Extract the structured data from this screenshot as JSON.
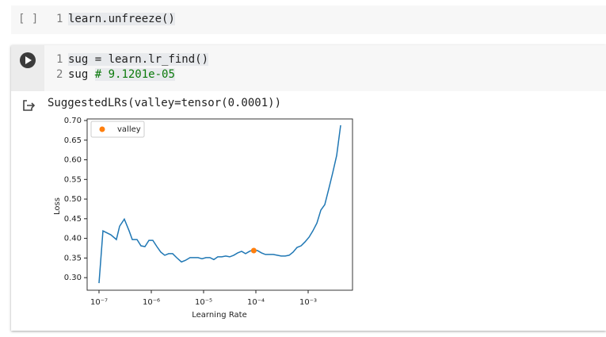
{
  "cells": [
    {
      "prompt": "[ ]",
      "lines": [
        {
          "number": 1,
          "code": "learn.unfreeze()"
        }
      ]
    },
    {
      "lines": [
        {
          "number": 1,
          "code": "sug = learn.lr_find()"
        },
        {
          "number": 2,
          "code": "sug",
          "comment": "# 9.1201e-05"
        }
      ],
      "output": "SuggestedLRs(valley=tensor(0.0001))"
    }
  ],
  "chart_data": {
    "type": "line",
    "xlabel": "Learning Rate",
    "ylabel": "Loss",
    "xscale": "log",
    "xlim": [
      5.93e-08,
      0.00705
    ],
    "ylim": [
      0.268,
      0.704
    ],
    "xticks": [
      {
        "value": 1e-07,
        "label": "10⁻⁷"
      },
      {
        "value": 1e-06,
        "label": "10⁻⁶"
      },
      {
        "value": 1e-05,
        "label": "10⁻⁵"
      },
      {
        "value": 0.0001,
        "label": "10⁻⁴"
      },
      {
        "value": 0.001,
        "label": "10⁻³"
      }
    ],
    "yticks": [
      {
        "value": 0.3,
        "label": "0.30"
      },
      0.35,
      {
        "value": 0.4,
        "label": "0.40"
      },
      0.45,
      {
        "value": 0.5,
        "label": "0.50"
      },
      0.55,
      {
        "value": 0.6,
        "label": "0.60"
      },
      0.65,
      {
        "value": 0.7,
        "label": "0.70"
      }
    ],
    "legend": "upper left",
    "series": [
      {
        "color": "#1f77b4",
        "x": [
          1e-07,
          1.19e-07,
          1.69e-07,
          2.15e-07,
          2.48e-07,
          3.05e-07,
          3.77e-07,
          4.33e-07,
          5.34e-07,
          6.35e-07,
          7.56e-07,
          9.01e-07,
          1.07e-06,
          1.28e-06,
          1.52e-06,
          1.81e-06,
          2.15e-06,
          2.56e-06,
          3.05e-06,
          3.77e-06,
          4.49e-06,
          5.52e-06,
          6.58e-06,
          7.83e-06,
          9.33e-06,
          1.11e-05,
          1.32e-05,
          1.57e-05,
          1.87e-05,
          2.23e-05,
          2.65e-05,
          3.16e-05,
          3.77e-05,
          4.49e-05,
          5.34e-05,
          6.35e-05,
          7.56e-05,
          9.01e-05,
          0.000107,
          0.000128,
          0.000152,
          0.000181,
          0.000215,
          0.000256,
          0.000305,
          0.000364,
          0.000433,
          0.000515,
          0.000613,
          0.000731,
          0.00087,
          0.00104,
          0.00123,
          0.00147,
          0.00175,
          0.00208,
          0.00248,
          0.00295,
          0.00351,
          0.00418
        ],
        "values": [
          0.286,
          0.419,
          0.409,
          0.397,
          0.431,
          0.449,
          0.419,
          0.397,
          0.397,
          0.381,
          0.379,
          0.395,
          0.395,
          0.379,
          0.365,
          0.357,
          0.361,
          0.361,
          0.351,
          0.34,
          0.344,
          0.351,
          0.351,
          0.351,
          0.348,
          0.351,
          0.351,
          0.346,
          0.353,
          0.353,
          0.355,
          0.353,
          0.357,
          0.363,
          0.367,
          0.361,
          0.367,
          0.371,
          0.369,
          0.363,
          0.359,
          0.359,
          0.359,
          0.357,
          0.355,
          0.355,
          0.357,
          0.365,
          0.377,
          0.381,
          0.391,
          0.403,
          0.419,
          0.439,
          0.472,
          0.486,
          0.526,
          0.567,
          0.611,
          0.688
        ]
      },
      {
        "name": "valley",
        "type": "scatter",
        "color": "#ff7f0e",
        "x": [
          9.12e-05
        ],
        "values": [
          0.369
        ]
      }
    ]
  }
}
